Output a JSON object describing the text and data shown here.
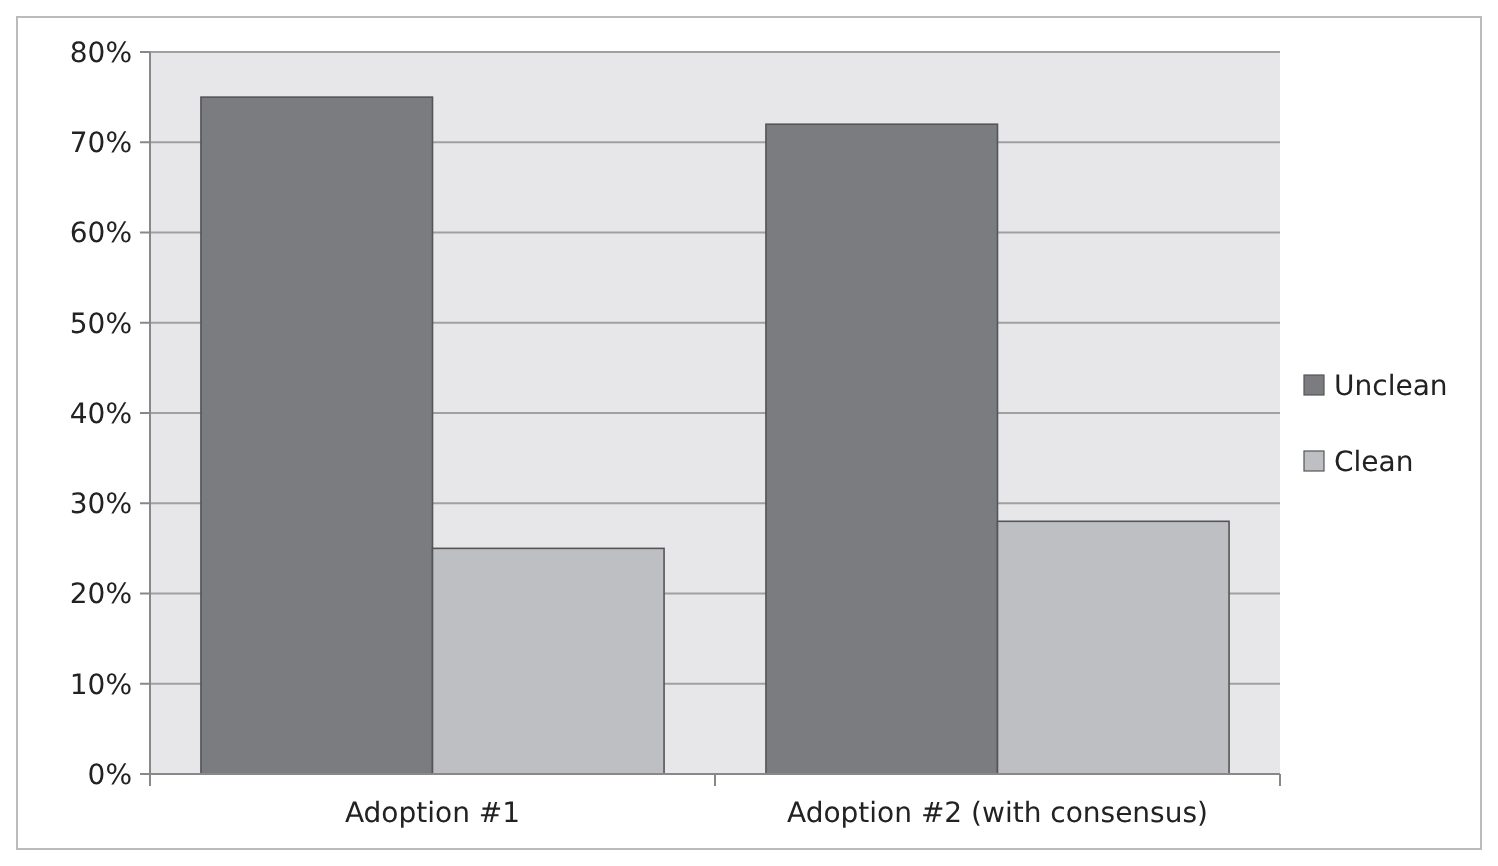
{
  "chart_data": {
    "type": "bar",
    "categories": [
      "Adoption #1",
      "Adoption #2 (with consensus)"
    ],
    "series": [
      {
        "name": "Unclean",
        "color": "#7b7c80",
        "values": [
          75,
          72
        ]
      },
      {
        "name": "Clean",
        "color": "#bebfc3",
        "values": [
          25,
          28
        ]
      }
    ],
    "ylim": [
      0,
      80
    ],
    "yticks": [
      {
        "value": 0,
        "label": "0%"
      },
      {
        "value": 10,
        "label": "10%"
      },
      {
        "value": 20,
        "label": "20%"
      },
      {
        "value": 30,
        "label": "30%"
      },
      {
        "value": 40,
        "label": "40%"
      },
      {
        "value": 50,
        "label": "50%"
      },
      {
        "value": 60,
        "label": "60%"
      },
      {
        "value": 70,
        "label": "70%"
      },
      {
        "value": 80,
        "label": "80%"
      }
    ],
    "grid": "y",
    "legend": "right"
  }
}
